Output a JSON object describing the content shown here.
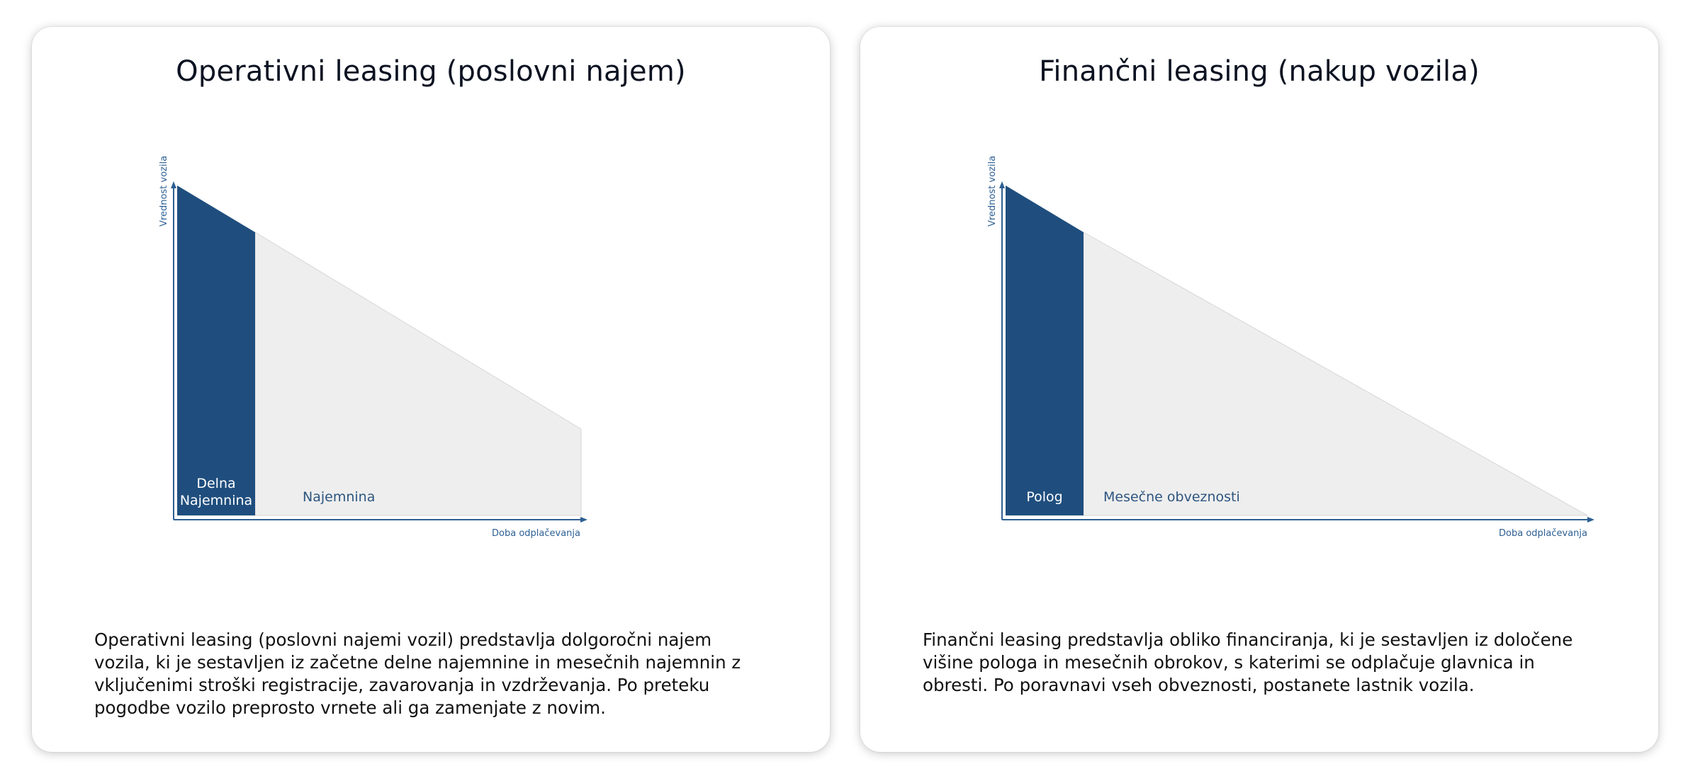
{
  "colors": {
    "accent_dark": "#1f4e7e",
    "axis": "#2d5f93",
    "area_light": "#eeeeee",
    "label_light": "#ffffff",
    "label_dark": "#2d5580"
  },
  "cards": [
    {
      "title": "Operativni leasing (poslovni najem)",
      "diagram": {
        "y_axis_label": "Vrednost vozila",
        "x_axis_label": "Doba odplačevanja",
        "dark_label_line1": "Delna",
        "dark_label_line2": "Najemnina",
        "light_label": "Najemnina"
      },
      "description": "Operativni leasing (poslovni najemi vozil) predstavlja dolgoročni najem vozila, ki je sestavljen iz začetne delne najemnine in mesečnih najemnin z vključenimi stroški registracije, zavarovanja in vzdrževanja. Po preteku pogodbe vozilo preprosto vrnete ali ga zamenjate z novim."
    },
    {
      "title": "Finančni leasing (nakup vozila)",
      "diagram": {
        "y_axis_label": "Vrednost vozila",
        "x_axis_label": "Doba odplačevanja",
        "dark_label": "Polog",
        "light_label": "Mesečne obveznosti"
      },
      "description": "Finančni leasing predstavlja obliko financiranja, ki je sestavljen iz določene višine pologa in mesečnih obrokov, s katerimi se odplačuje glavnica in obresti. Po poravnavi vseh obveznosti, postanete lastnik vozila."
    }
  ]
}
